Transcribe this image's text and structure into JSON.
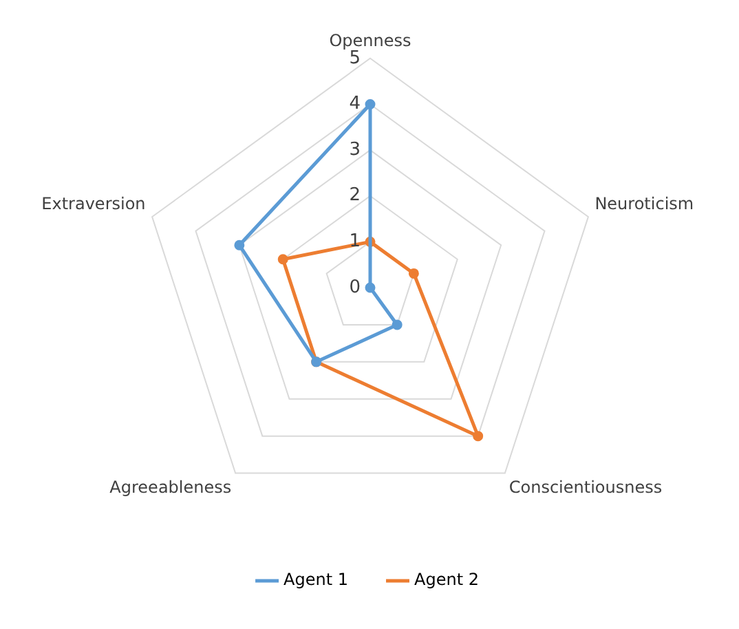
{
  "chart_data": {
    "type": "radar",
    "categories": [
      "Openness",
      "Neuroticism",
      "Conscientiousness",
      "Agreeableness",
      "Extraversion"
    ],
    "series": [
      {
        "name": "Agent 1",
        "color": "#5b9bd5",
        "values": [
          4,
          0,
          1,
          2,
          3
        ]
      },
      {
        "name": "Agent 2",
        "color": "#ed7d31",
        "values": [
          1,
          1,
          4,
          2,
          2
        ]
      }
    ],
    "ylim": [
      0,
      5
    ],
    "yticks": [
      0,
      1,
      2,
      3,
      4,
      5
    ],
    "grid": true,
    "legend": "bottom",
    "marker": "circle"
  }
}
